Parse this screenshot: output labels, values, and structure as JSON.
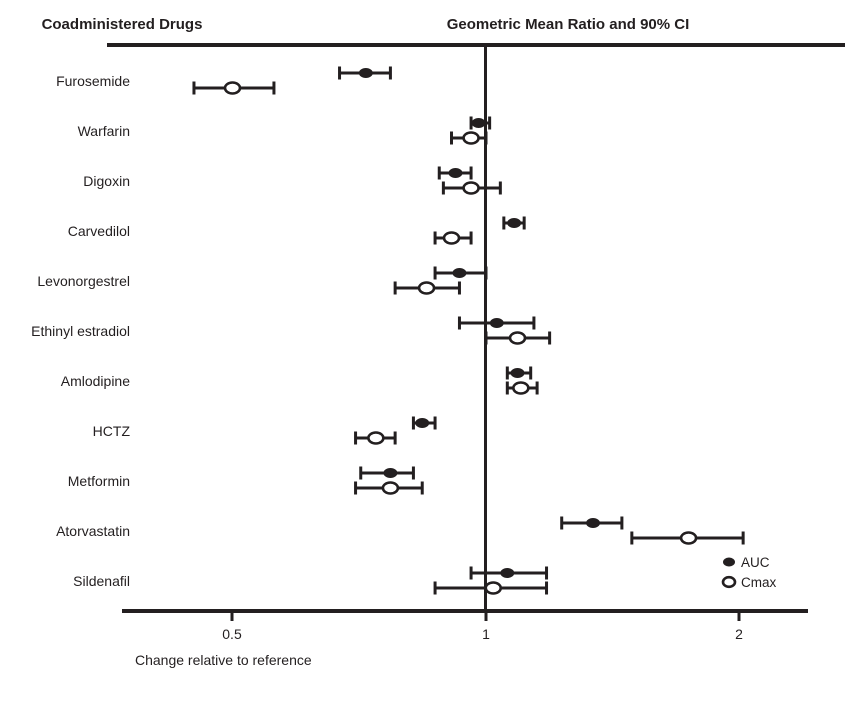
{
  "colors": {
    "ink": "#231f20",
    "background": "#ffffff"
  },
  "chart_data": {
    "type": "forest",
    "title_left": "Coadministered Drugs",
    "title_right": "Geometric Mean Ratio and 90% CI",
    "xlabel": "Change relative to reference",
    "x_scale": "log2",
    "xlim": [
      0.37,
      2.4
    ],
    "reference_line": 1,
    "grid": "off",
    "legend_position": "bottom-right",
    "x_ticks": [
      {
        "value": 0.5,
        "label": "0.5"
      },
      {
        "value": 1,
        "label": "1"
      },
      {
        "value": 2,
        "label": "2"
      }
    ],
    "legend": [
      {
        "label": "AUC",
        "marker": "filled-circle"
      },
      {
        "label": "Cmax",
        "marker": "open-circle"
      }
    ],
    "categories": [
      "Furosemide",
      "Warfarin",
      "Digoxin",
      "Carvedilol",
      "Levonorgestrel",
      "Ethinyl estradiol",
      "Amlodipine",
      "HCTZ",
      "Metformin",
      "Atorvastatin",
      "Sildenafil"
    ],
    "rows": [
      {
        "drug": "Furosemide",
        "auc": {
          "est": 0.72,
          "lo": 0.67,
          "hi": 0.77
        },
        "cmax": {
          "est": 0.5,
          "lo": 0.45,
          "hi": 0.56
        }
      },
      {
        "drug": "Warfarin",
        "auc": {
          "est": 0.98,
          "lo": 0.96,
          "hi": 1.01
        },
        "cmax": {
          "est": 0.96,
          "lo": 0.91,
          "hi": 1.0
        }
      },
      {
        "drug": "Digoxin",
        "auc": {
          "est": 0.92,
          "lo": 0.88,
          "hi": 0.96
        },
        "cmax": {
          "est": 0.96,
          "lo": 0.89,
          "hi": 1.04
        }
      },
      {
        "drug": "Carvedilol",
        "auc": {
          "est": 1.08,
          "lo": 1.05,
          "hi": 1.11
        },
        "cmax": {
          "est": 0.91,
          "lo": 0.87,
          "hi": 0.96
        }
      },
      {
        "drug": "Levonorgestrel",
        "auc": {
          "est": 0.93,
          "lo": 0.87,
          "hi": 1.0
        },
        "cmax": {
          "est": 0.85,
          "lo": 0.78,
          "hi": 0.93
        }
      },
      {
        "drug": "Ethinyl estradiol",
        "auc": {
          "est": 1.03,
          "lo": 0.93,
          "hi": 1.14
        },
        "cmax": {
          "est": 1.09,
          "lo": 1.0,
          "hi": 1.19
        }
      },
      {
        "drug": "Amlodipine",
        "auc": {
          "est": 1.09,
          "lo": 1.06,
          "hi": 1.13
        },
        "cmax": {
          "est": 1.1,
          "lo": 1.06,
          "hi": 1.15
        }
      },
      {
        "drug": "HCTZ",
        "auc": {
          "est": 0.84,
          "lo": 0.82,
          "hi": 0.87
        },
        "cmax": {
          "est": 0.74,
          "lo": 0.7,
          "hi": 0.78
        }
      },
      {
        "drug": "Metformin",
        "auc": {
          "est": 0.77,
          "lo": 0.71,
          "hi": 0.82
        },
        "cmax": {
          "est": 0.77,
          "lo": 0.7,
          "hi": 0.84
        }
      },
      {
        "drug": "Atorvastatin",
        "auc": {
          "est": 1.34,
          "lo": 1.23,
          "hi": 1.45
        },
        "cmax": {
          "est": 1.74,
          "lo": 1.49,
          "hi": 2.02
        }
      },
      {
        "drug": "Sildenafil",
        "auc": {
          "est": 1.06,
          "lo": 0.96,
          "hi": 1.18
        },
        "cmax": {
          "est": 1.02,
          "lo": 0.87,
          "hi": 1.18
        }
      }
    ]
  }
}
